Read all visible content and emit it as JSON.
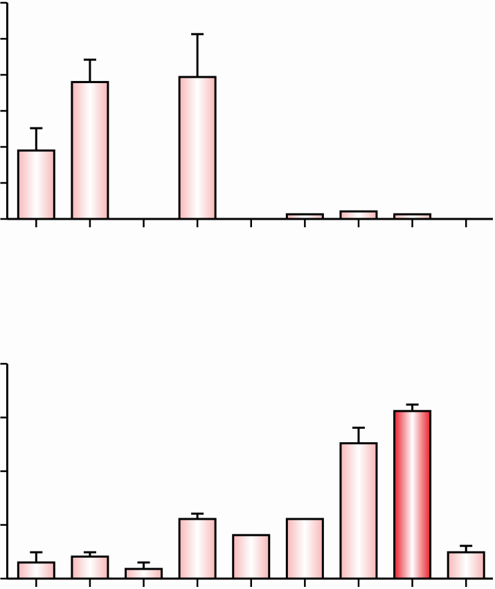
{
  "chart_data": [
    {
      "type": "bar",
      "categories": [
        null,
        null,
        null,
        null,
        null,
        null,
        null,
        null,
        null
      ],
      "values": [
        1.9,
        3.8,
        null,
        3.94,
        null,
        0.13,
        0.21,
        0.13,
        null
      ],
      "errors": [
        0.62,
        0.62,
        null,
        1.19,
        null,
        null,
        null,
        null,
        null
      ],
      "colors": [
        "#f7b8b8",
        "#f7b8b8",
        "#f7b8b8",
        "#f7b8b8",
        "#f7b8b8",
        "#f7b8b8",
        "#f7b8b8",
        "#f7b8b8",
        "#f7b8b8"
      ],
      "ylim": [
        0,
        6
      ],
      "yticks": [
        0,
        1,
        2,
        3,
        4,
        5,
        6
      ],
      "grid": false
    },
    {
      "type": "bar",
      "categories": [
        null,
        null,
        null,
        null,
        null,
        null,
        null,
        null,
        null
      ],
      "values": [
        0.3,
        0.41,
        0.18,
        1.11,
        0.81,
        1.11,
        2.52,
        3.12,
        0.49
      ],
      "errors": [
        0.19,
        0.08,
        0.12,
        0.1,
        null,
        null,
        0.29,
        0.12,
        0.12
      ],
      "colors": [
        "#f7b8b8",
        "#f7b8b8",
        "#f7b8b8",
        "#f7b8b8",
        "#f7b8b8",
        "#f7b8b8",
        "#f7b8b8",
        "#e8202c",
        "#f7b8b8"
      ],
      "ylim": [
        0,
        4
      ],
      "yticks": [
        0,
        1,
        2,
        3,
        4
      ],
      "grid": false
    }
  ]
}
